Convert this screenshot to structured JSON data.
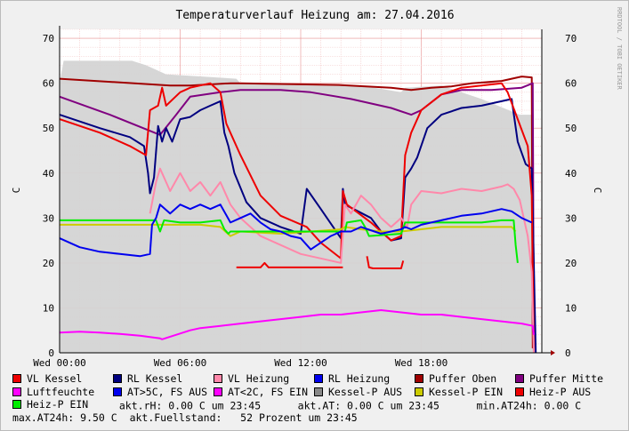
{
  "chart_data": {
    "type": "line",
    "title": "Temperaturverlauf Heizung am: 27.04.2016",
    "ylabel": "C",
    "ylabel_right": "C",
    "watermark": "RRDTOOL / TOBI OETIKER",
    "ylim": [
      0,
      72
    ],
    "y_ticks": [
      0,
      10,
      20,
      30,
      40,
      50,
      60,
      70
    ],
    "xlim": [
      0,
      24
    ],
    "x_ticks": [
      {
        "x": 0,
        "label": "Wed 00:00"
      },
      {
        "x": 6,
        "label": "Wed 06:00"
      },
      {
        "x": 12,
        "label": "Wed 12:00"
      },
      {
        "x": 18,
        "label": "Wed 18:00"
      }
    ],
    "grid": true,
    "area": {
      "name": "Kessel-P AUS",
      "color": "#d4d4d4",
      "x": [
        0,
        0.2,
        3.6,
        4.3,
        5.3,
        8.8,
        9.0,
        10.0,
        15.0,
        17.0,
        17.2,
        19.0,
        21.0,
        22.9,
        23.6,
        23.65
      ],
      "y": [
        60,
        65,
        65,
        64,
        62,
        61,
        60,
        60,
        59.5,
        58,
        59,
        59.5,
        56.5,
        53,
        53,
        0
      ]
    },
    "series": [
      {
        "name": "Puffer Oben",
        "color": "#a00000",
        "x": [
          0,
          5.5,
          6.5,
          8.5,
          9.0,
          14.0,
          16.5,
          17.5,
          18.5,
          19.5,
          20.5,
          22.0,
          23.0,
          23.5,
          23.55
        ],
        "y": [
          61,
          59.5,
          59.5,
          60,
          60,
          59.6,
          59,
          58.5,
          59,
          59.3,
          60,
          60.5,
          61.5,
          61.3,
          1
        ]
      },
      {
        "name": "Puffer Mitte",
        "color": "#800080",
        "x": [
          0,
          2.5,
          5.0,
          5.8,
          6.5,
          8.0,
          9.0,
          11.0,
          12.5,
          14.5,
          16.5,
          17.5,
          18.0,
          19.0,
          20.0,
          21.5,
          23.0,
          23.55,
          23.6
        ],
        "y": [
          57,
          53,
          48.5,
          53,
          57,
          58,
          58.5,
          58.5,
          58,
          56.5,
          54.5,
          53,
          54,
          57.5,
          58.5,
          58.5,
          59,
          60,
          1
        ]
      },
      {
        "name": "RL Kessel",
        "color": "#000080",
        "x": [
          0,
          2.0,
          3.5,
          4.2,
          4.4,
          4.5,
          4.7,
          4.9,
          5.1,
          5.3,
          5.6,
          6.0,
          6.5,
          7.0,
          7.5,
          8.0,
          8.2,
          8.4,
          8.7,
          9.3,
          10.0,
          11.0,
          12.0,
          12.3,
          13.0,
          14.0,
          14.1,
          14.2,
          15.5,
          16.0,
          16.5,
          17.0,
          17.2,
          17.5,
          17.8,
          18.3,
          19.0,
          20.0,
          21.0,
          22.0,
          22.5,
          22.8,
          23.2,
          23.5,
          23.7
        ],
        "y": [
          53,
          50,
          48,
          46,
          40,
          35.5,
          39,
          50.5,
          47,
          50,
          47,
          52,
          52.5,
          54,
          55,
          56,
          49,
          46,
          40,
          33.5,
          30,
          28,
          26.5,
          36.5,
          32,
          25.5,
          36.5,
          33,
          30,
          27,
          25,
          25.5,
          39,
          41,
          43.5,
          50,
          53,
          54.5,
          55,
          56,
          56.5,
          47,
          42,
          41,
          0
        ]
      },
      {
        "name": "VL Kessel",
        "color": "#ee0000",
        "x": [
          0,
          2.0,
          3.5,
          4.3,
          4.5,
          4.9,
          5.1,
          5.3,
          6.0,
          6.5,
          7.0,
          7.5,
          8.0,
          8.3,
          9.0,
          10.0,
          11.0,
          12.3,
          13.0,
          14.0,
          14.1,
          14.3,
          15.5,
          16.5,
          17.0,
          17.2,
          17.5,
          18.0,
          19.0,
          20.0,
          21.0,
          22.0,
          22.3,
          22.8,
          23.3,
          23.5,
          23.6
        ],
        "y": [
          52,
          49,
          46,
          44,
          54,
          55,
          59,
          55,
          58,
          59,
          59.5,
          60,
          58,
          51,
          44,
          35,
          30.5,
          28,
          24.5,
          21,
          36,
          33,
          29,
          25,
          26,
          44,
          49,
          54,
          57.5,
          59,
          59.5,
          60,
          58,
          52,
          46,
          35,
          0
        ]
      },
      {
        "name": "Kessel-P AUS",
        "color": "#ee0000",
        "x": [
          8.8,
          10.0,
          10.2,
          10.4,
          12.0,
          14.0,
          14.1
        ],
        "y": [
          19,
          19,
          20,
          19,
          19,
          19,
          19
        ]
      },
      {
        "name": "Heiz-P AUS",
        "color": "#ee0000",
        "x": [
          15.3,
          15.4,
          15.6,
          17.0,
          17.1
        ],
        "y": [
          21.5,
          19,
          18.8,
          18.8,
          20.5
        ]
      },
      {
        "name": "VL Heizung",
        "color": "#ff88aa",
        "x": [
          4.5,
          4.8,
          5.0,
          5.5,
          6.0,
          6.5,
          7.0,
          7.5,
          8.0,
          8.5,
          9.0,
          10.0,
          11.0,
          12.0,
          13.0,
          14.0,
          14.2,
          14.5,
          15.0,
          15.5,
          16.0,
          16.5,
          17.0,
          17.3,
          17.5,
          18.0,
          19.0,
          20.0,
          21.0,
          22.0,
          22.3,
          22.6,
          22.9,
          23.3,
          23.5,
          23.6
        ],
        "y": [
          31,
          38,
          41,
          36,
          40,
          36,
          38,
          35,
          38,
          33,
          30,
          26,
          24,
          22,
          21,
          20,
          33,
          31,
          35,
          33,
          30,
          28,
          30,
          28,
          33,
          36,
          35.5,
          36.5,
          36,
          37,
          37.5,
          36.5,
          34,
          26,
          18,
          0
        ]
      },
      {
        "name": "Kessel-P EIN",
        "color": "#cccc00",
        "x": [
          0,
          2.0,
          4.0,
          5.0,
          6.0,
          7.0,
          8.0,
          8.5,
          9.0,
          11.0,
          14.0,
          14.2,
          15.0,
          16.0,
          17.0,
          18.0,
          19.0,
          20.0,
          21.0,
          22.0,
          22.5,
          22.7
        ],
        "y": [
          28.5,
          28.5,
          28.5,
          28.5,
          28.5,
          28.5,
          28,
          26,
          27,
          26.5,
          27.5,
          28,
          27.5,
          27,
          27,
          27.5,
          28,
          28,
          28,
          28,
          28,
          27
        ]
      },
      {
        "name": "Heiz-P EIN",
        "color": "#00ee00",
        "x": [
          0,
          1.0,
          2.0,
          3.0,
          4.0,
          4.8,
          5.0,
          5.2,
          6.0,
          7.0,
          8.0,
          8.2,
          8.4,
          8.5,
          14.2,
          14.3,
          15.0,
          15.2,
          15.4,
          17.0,
          17.2,
          18.0,
          19.0,
          20.0,
          21.0,
          22.0,
          22.6,
          22.7,
          22.8
        ],
        "y": [
          29.5,
          29.5,
          29.5,
          29.5,
          29.5,
          29.5,
          27,
          29.5,
          29,
          29,
          29.5,
          27.5,
          26.5,
          27,
          27,
          29,
          29.5,
          28,
          26,
          26.5,
          29,
          29,
          29,
          29,
          29,
          29.5,
          29.5,
          24,
          20
        ]
      },
      {
        "name": "RL Heizung",
        "color": "#0000ee",
        "x": [
          0,
          1.0,
          2.0,
          3.0,
          4.0,
          4.5,
          4.6,
          4.8,
          5.0,
          5.5,
          6.0,
          6.5,
          7.0,
          7.5,
          8.0,
          8.5,
          9.0,
          9.5,
          10.0,
          10.5,
          11.0,
          11.5,
          12.0,
          12.5,
          13.0,
          13.5,
          14.0,
          14.5,
          15.0,
          16.0,
          17.0,
          17.2,
          17.5,
          18.0,
          19.0,
          20.0,
          21.0,
          22.0,
          22.5,
          23.0,
          23.5
        ],
        "y": [
          25.5,
          23.5,
          22.5,
          22,
          21.5,
          22,
          28.5,
          30,
          33,
          31,
          33,
          32,
          33,
          32,
          33,
          29,
          30,
          31,
          29,
          27.5,
          27,
          26,
          25.5,
          23,
          24.5,
          26,
          27,
          27,
          28,
          26.5,
          27.5,
          28,
          27.5,
          28.5,
          29.5,
          30.5,
          31,
          32,
          31.5,
          30,
          29
        ]
      },
      {
        "name": "Luftfeuchte",
        "color": "#ff00ff",
        "x": [
          0,
          1.0,
          2.0,
          3.0,
          4.0,
          5.0,
          5.1,
          6.5,
          7.0,
          8.0,
          9.0,
          10.0,
          11.0,
          12.0,
          13.0,
          14.0,
          15.0,
          16.0,
          17.0,
          18.0,
          19.0,
          20.0,
          21.0,
          22.0,
          23.0,
          23.55,
          23.6
        ],
        "y": [
          4.5,
          4.7,
          4.5,
          4.2,
          3.8,
          3.2,
          3.0,
          5.0,
          5.5,
          6.0,
          6.5,
          7.0,
          7.5,
          8.0,
          8.5,
          8.5,
          9.0,
          9.5,
          9.0,
          8.5,
          8.5,
          8.0,
          7.5,
          7.0,
          6.5,
          6.0,
          4.0
        ]
      }
    ]
  },
  "legend": {
    "rows": [
      [
        {
          "label": "VL Kessel",
          "color": "#ee0000"
        },
        {
          "label": "RL Kessel",
          "color": "#000080"
        },
        {
          "label": "VL Heizung",
          "color": "#ff88aa"
        },
        {
          "label": "RL Heizung",
          "color": "#0000ee"
        },
        {
          "label": "Puffer Oben",
          "color": "#a00000"
        },
        {
          "label": "Puffer Mitte",
          "color": "#800080"
        }
      ],
      [
        {
          "label": "Luftfeuchte",
          "color": "#ff00ff"
        },
        {
          "label": "AT>5C, FS AUS",
          "color": "#0000ee"
        },
        {
          "label": "AT<2C, FS EIN",
          "color": "#ff00ff"
        },
        {
          "label": "Kessel-P AUS",
          "color": "#888888"
        },
        {
          "label": "Kessel-P EIN",
          "color": "#cccc00"
        },
        {
          "label": "Heiz-P AUS",
          "color": "#ee0000"
        }
      ]
    ],
    "heizp_ein": {
      "label": "Heiz-P EIN",
      "color": "#00ee00"
    },
    "akt_rh": "akt.rH: 0.00 C um 23:45",
    "akt_at": "akt.AT: 0.00 C um 23:45",
    "min_at24h": "min.AT24h: 0.00 C",
    "max_at24h": "max.AT24h: 9.50 C",
    "akt_fuellstand": "akt.Fuellstand:   52 Prozent um 23:45"
  }
}
